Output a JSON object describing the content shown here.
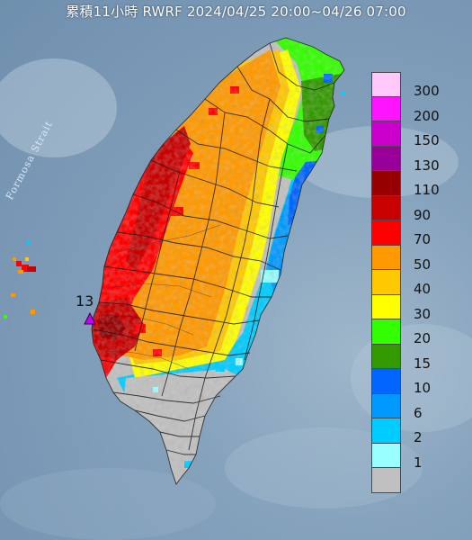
{
  "title": "累積11小時 RWRF 2024/04/25 20:00~04/26 07:00",
  "sea_label": "Formosa Strait",
  "station": {
    "value": "13"
  },
  "legend": [
    {
      "label": "300",
      "color": "#ffc8f8"
    },
    {
      "label": "200",
      "color": "#ff14ff"
    },
    {
      "label": "150",
      "color": "#cc00cc"
    },
    {
      "label": "130",
      "color": "#990099"
    },
    {
      "label": "110",
      "color": "#960000"
    },
    {
      "label": "90",
      "color": "#c80000"
    },
    {
      "label": "70",
      "color": "#ff0000"
    },
    {
      "label": "50",
      "color": "#ff9900"
    },
    {
      "label": "40",
      "color": "#ffc800"
    },
    {
      "label": "30",
      "color": "#ffff00"
    },
    {
      "label": "20",
      "color": "#33ff00"
    },
    {
      "label": "15",
      "color": "#339900"
    },
    {
      "label": "10",
      "color": "#0066ff"
    },
    {
      "label": "6",
      "color": "#0099ff"
    },
    {
      "label": "2",
      "color": "#00ccff"
    },
    {
      "label": "1",
      "color": "#99ffff"
    },
    {
      "label": "",
      "color": "#c0c0c0"
    }
  ]
}
